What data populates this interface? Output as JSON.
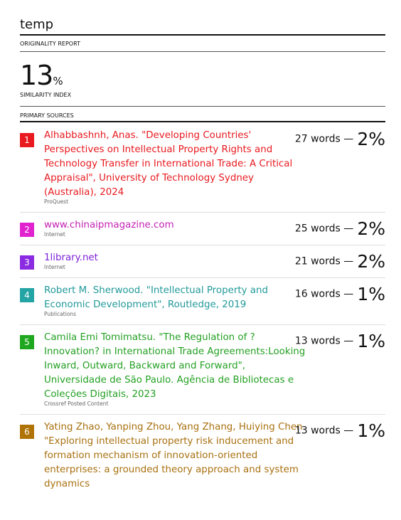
{
  "header": {
    "title": "temp",
    "report_label": "ORIGINALITY REPORT",
    "similarity": "13",
    "similarity_unit": "%",
    "similarity_label": "SIMILARITY INDEX",
    "sources_label": "PRIMARY SOURCES"
  },
  "sources": [
    {
      "number": "1",
      "color": "#e8191f",
      "badge": "#e8191f",
      "title": "Alhabbashnh, Anas. \"Developing Countries' Perspectives on Intellectual Property Rights and Technology Transfer in International Trade: A Critical Appraisal\", University of Technology Sydney (Australia), 2024",
      "type": "ProQuest",
      "words": "27 words —",
      "percent": "2%"
    },
    {
      "number": "2",
      "color": "#c41fb2",
      "badge": "#e022cf",
      "title": "www.chinaipmagazine.com",
      "type": "Internet",
      "words": "25 words —",
      "percent": "2%"
    },
    {
      "number": "3",
      "color": "#7c22d8",
      "badge": "#8a2be2",
      "title": "1library.net",
      "type": "Internet",
      "words": "21 words —",
      "percent": "2%"
    },
    {
      "number": "4",
      "color": "#23999a",
      "badge": "#24a4a4",
      "title": "Robert M. Sherwood. \"Intellectual Property and Economic Development\", Routledge, 2019",
      "type": "Publications",
      "words": "16 words —",
      "percent": "1%"
    },
    {
      "number": "5",
      "color": "#23a023",
      "badge": "#1fa81f",
      "title": "Camila Emi Tomimatsu. \"The Regulation of ? Innovation? in International Trade Agreements:Looking Inward, Outward, Backward and Forward\", Universidade de São Paulo. Agência de Bibliotecas e Coleções Digitais, 2023",
      "type": "Crossref Posted Content",
      "words": "13 words —",
      "percent": "1%"
    },
    {
      "number": "6",
      "color": "#a8700f",
      "badge": "#b07306",
      "title": "Yating Zhao, Yanping Zhou, Yang Zhang, Huiying Chen. \"Exploring intellectual property risk inducement and formation mechanism of innovation-oriented enterprises: a grounded theory approach and system dynamics",
      "words": "13 words —",
      "percent": "1%"
    }
  ]
}
